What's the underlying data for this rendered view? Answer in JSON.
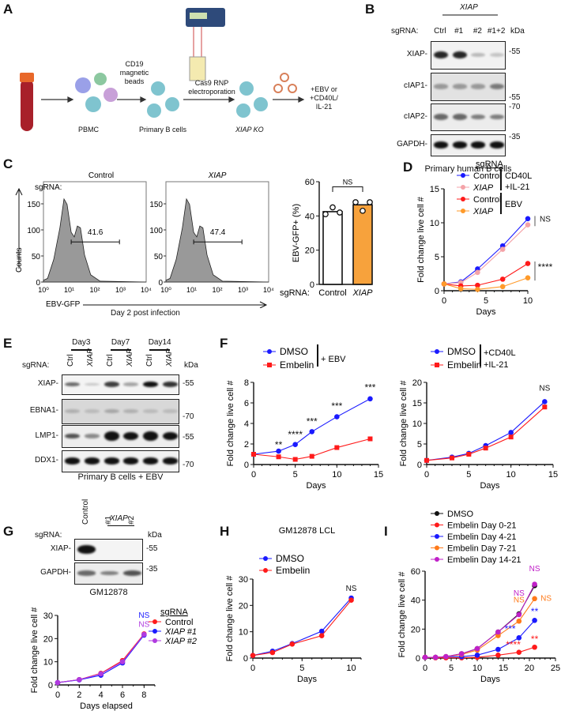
{
  "panels": {
    "A": {
      "label": "A",
      "steps": [
        "PBMC",
        "Primary B cells",
        "XIAP KO"
      ],
      "arrow1_label": [
        "CD19",
        "magnetic",
        "beads"
      ],
      "arrow2_label": [
        "Cas9 RNP",
        "electroporation"
      ],
      "final_label": [
        "+EBV or",
        "+CD40L/",
        "IL-21"
      ],
      "colors": {
        "blood": "#a8202a",
        "cap": "#e8682a",
        "bcell": "#7fc4cf",
        "virus": "#d8805a"
      }
    },
    "B": {
      "label": "B",
      "group_label": "XIAP",
      "sgrna_label": "sgRNA:",
      "lanes": [
        "Ctrl",
        "#1",
        "#2",
        "#1+2"
      ],
      "kda_label": "kDa",
      "rows": [
        "XIAP-",
        "cIAP1-",
        "cIAP2-",
        "GAPDH-"
      ],
      "markers": [
        "-55",
        "-55",
        "-70",
        "-35"
      ],
      "caption": "Primary human B cells"
    },
    "C": {
      "label": "C",
      "sgrna_label": "sgRNA:",
      "hist_titles": [
        "Control",
        "XIAP"
      ],
      "gate_values": [
        "41.6",
        "47.4"
      ],
      "y_ticks": [
        "0",
        "50",
        "100",
        "150"
      ],
      "x_ticks": [
        "10⁰",
        "10¹",
        "10²",
        "10³",
        "10⁴"
      ],
      "ylabel": "Counts",
      "xlabel": "EBV-GFP",
      "caption": "Day 2 post infection"
    },
    "E": {
      "label": "E",
      "days": [
        "Day3",
        "Day7",
        "Day14"
      ],
      "sgrna_label": "sgRNA:",
      "lanes": [
        "Ctrl",
        "XIAP",
        "Ctrl",
        "XIAP",
        "Ctrl",
        "XIAP"
      ],
      "kda_label": "kDa",
      "rows": [
        "XIAP-",
        "EBNA1-",
        "LMP1-",
        "DDX1-"
      ],
      "markers": [
        "-55",
        "-70",
        "-55",
        "-70"
      ],
      "caption": "Primary B cells + EBV"
    },
    "G": {
      "label": "G",
      "group_label": "XIAP",
      "sgrna_label": "sgRNA:",
      "lanes": [
        "Control",
        "#1",
        "#2"
      ],
      "kda_label": "kDa",
      "rows": [
        "XIAP-",
        "GAPDH-"
      ],
      "markers": [
        "-55",
        "-35"
      ],
      "caption": "GM12878"
    },
    "D": {
      "label": "D"
    },
    "F": {
      "label": "F"
    },
    "H": {
      "label": "H"
    },
    "I": {
      "label": "I"
    }
  },
  "chart_data": [
    {
      "id": "C-bar",
      "type": "bar",
      "categories": [
        "Control",
        "XIAP"
      ],
      "values": [
        42.5,
        46.5
      ],
      "points": [
        [
          41,
          45,
          42
        ],
        [
          48,
          43,
          48
        ]
      ],
      "colors": [
        "#ffffff",
        "#f7a23c"
      ],
      "ylabel": "EBV-GFP+ (%)",
      "xlabel": "sgRNA:",
      "ylim": [
        0,
        60
      ],
      "yticks": [
        0,
        20,
        40,
        60
      ],
      "annotation": "NS"
    },
    {
      "id": "D",
      "type": "line",
      "legend_title": "sgRNA",
      "xlabel": "Days",
      "ylabel": "Fold change live cell #",
      "xlim": [
        0,
        10
      ],
      "ylim": [
        0,
        15
      ],
      "xticks": [
        0,
        5,
        10
      ],
      "yticks": [
        0,
        5,
        10,
        15
      ],
      "x": [
        0,
        2,
        4,
        7,
        10
      ],
      "series": [
        {
          "name": "Control",
          "color": "#1a1aff",
          "values": [
            1,
            1.3,
            3.2,
            6.6,
            10.6
          ]
        },
        {
          "name": "XIAP",
          "color": "#f4a3a8",
          "values": [
            1,
            1.2,
            2.7,
            6.1,
            9.7
          ]
        },
        {
          "name": "Control",
          "color": "#ff1a1a",
          "values": [
            1,
            0.7,
            0.8,
            1.7,
            4.0
          ]
        },
        {
          "name": "XIAP",
          "color": "#ff9a2a",
          "values": [
            1,
            0.3,
            0.2,
            0.6,
            1.9
          ]
        }
      ],
      "group_labels": [
        [
          "CD40L",
          "+IL-21"
        ],
        [
          "EBV"
        ]
      ],
      "annotations": [
        {
          "text": "NS",
          "x": 10,
          "y": 10.2
        },
        {
          "text": "****",
          "x": 10,
          "y": 3.0
        }
      ]
    },
    {
      "id": "F1",
      "type": "line",
      "legend_group": "+ EBV",
      "xlabel": "Days",
      "ylabel": "Fold change live cell #",
      "xlim": [
        0,
        15
      ],
      "ylim": [
        0,
        8
      ],
      "xticks": [
        0,
        5,
        10,
        15
      ],
      "yticks": [
        0,
        2,
        4,
        6,
        8
      ],
      "x": [
        0,
        3,
        5,
        7,
        10,
        14
      ],
      "series": [
        {
          "name": "DMSO",
          "color": "#1a1aff",
          "marker": "circle",
          "values": [
            1,
            1.3,
            1.95,
            3.2,
            4.65,
            6.4
          ]
        },
        {
          "name": "Embelin",
          "color": "#ff1a1a",
          "marker": "square",
          "values": [
            1,
            0.75,
            0.5,
            0.8,
            1.65,
            2.5
          ]
        }
      ],
      "annotations": [
        {
          "text": "**",
          "x": 3,
          "y": 1.6
        },
        {
          "text": "****",
          "x": 5,
          "y": 2.6
        },
        {
          "text": "***",
          "x": 7,
          "y": 3.9
        },
        {
          "text": "***",
          "x": 10,
          "y": 5.4
        },
        {
          "text": "***",
          "x": 14,
          "y": 7.2
        }
      ]
    },
    {
      "id": "F2",
      "type": "line",
      "legend_group": [
        "+CD40L",
        "+IL-21"
      ],
      "xlabel": "Days",
      "ylabel": "Fold change live cell #",
      "xlim": [
        0,
        15
      ],
      "ylim": [
        0,
        20
      ],
      "xticks": [
        0,
        5,
        10,
        15
      ],
      "yticks": [
        0,
        5,
        10,
        15,
        20
      ],
      "x": [
        0,
        3,
        5,
        7,
        10,
        14
      ],
      "series": [
        {
          "name": "DMSO",
          "color": "#1a1aff",
          "marker": "circle",
          "values": [
            1,
            1.8,
            2.7,
            4.6,
            7.8,
            15.3
          ]
        },
        {
          "name": "Embelin",
          "color": "#ff1a1a",
          "marker": "square",
          "values": [
            1,
            1.6,
            2.5,
            4.0,
            6.7,
            14.0
          ]
        }
      ],
      "annotations": [
        {
          "text": "NS",
          "x": 14,
          "y": 18
        }
      ]
    },
    {
      "id": "G",
      "type": "line",
      "legend_title": "sgRNA",
      "xlabel": "Days elapsed",
      "ylabel": "Fold change live cell #",
      "xlim": [
        0,
        9
      ],
      "ylim": [
        0,
        30
      ],
      "xticks": [
        0,
        2,
        4,
        6,
        8
      ],
      "yticks": [
        0,
        10,
        20,
        30
      ],
      "x": [
        0,
        2,
        4,
        6,
        8
      ],
      "series": [
        {
          "name": "Control",
          "color": "#ff1a1a",
          "values": [
            1,
            2.3,
            5,
            10.5,
            22
          ]
        },
        {
          "name": "XIAP #1",
          "color": "#1a1aff",
          "values": [
            1,
            2.2,
            4.2,
            9.5,
            21.5
          ]
        },
        {
          "name": "XIAP #2",
          "color": "#b03ae0",
          "values": [
            1,
            2.3,
            4.8,
            10,
            21.8
          ]
        }
      ],
      "annotations": [
        {
          "text": "NS",
          "x": 8,
          "y": 29,
          "color": "#1a1aff"
        },
        {
          "text": "NS",
          "x": 8,
          "y": 25,
          "color": "#b03ae0"
        }
      ]
    },
    {
      "id": "H",
      "type": "line",
      "title": "GM12878 LCL",
      "xlabel": "Days",
      "ylabel": "Fold change live cell #",
      "xlim": [
        0,
        11
      ],
      "ylim": [
        0,
        30
      ],
      "xticks": [
        0,
        5,
        10
      ],
      "yticks": [
        0,
        10,
        20,
        30
      ],
      "x": [
        0,
        2,
        4,
        7,
        10
      ],
      "series": [
        {
          "name": "DMSO",
          "color": "#1a1aff",
          "values": [
            1,
            2.6,
            5.5,
            10.2,
            22.8
          ]
        },
        {
          "name": "Embelin",
          "color": "#ff1a1a",
          "values": [
            1,
            2.1,
            5.3,
            8.5,
            22
          ]
        }
      ],
      "annotations": [
        {
          "text": "NS",
          "x": 10,
          "y": 25.5
        }
      ]
    },
    {
      "id": "I",
      "type": "line",
      "xlabel": "Days",
      "ylabel": "Fold change live cell #",
      "xlim": [
        0,
        25
      ],
      "ylim": [
        0,
        60
      ],
      "xticks": [
        0,
        5,
        10,
        15,
        20,
        25
      ],
      "yticks": [
        0,
        20,
        40,
        60
      ],
      "x": [
        0,
        2,
        4,
        7,
        10,
        14,
        18,
        21
      ],
      "series": [
        {
          "name": "DMSO",
          "color": "#111111",
          "values": [
            0.5,
            0.5,
            1,
            3,
            6.5,
            18,
            30.5,
            50
          ]
        },
        {
          "name": "Embelin Day 0-21",
          "color": "#ff1a1a",
          "values": [
            0.5,
            0.2,
            0.2,
            0.2,
            0.5,
            2,
            4,
            7.5
          ]
        },
        {
          "name": "Embelin Day 4-21",
          "color": "#1a1aff",
          "values": [
            0.5,
            0.5,
            1,
            1,
            2,
            6,
            14,
            26
          ]
        },
        {
          "name": "Embelin Day 7-21",
          "color": "#ff7a1a",
          "values": [
            0.5,
            0.5,
            1,
            2.5,
            5.5,
            15.5,
            25.5,
            41
          ]
        },
        {
          "name": "Embelin Day 14-21",
          "color": "#c020c8",
          "values": [
            0.5,
            0.5,
            1,
            3,
            6.5,
            18,
            30,
            51
          ]
        }
      ],
      "annotations": [
        {
          "text": "NS",
          "x": 21,
          "y": 60,
          "color": "#c020c8"
        },
        {
          "text": "NS",
          "x": 18,
          "y": 43,
          "color": "#c020c8"
        },
        {
          "text": "NS",
          "x": 18,
          "y": 38.5,
          "color": "#ff7a1a"
        },
        {
          "text": "NS",
          "x": 23.2,
          "y": 39.5,
          "color": "#ff7a1a"
        },
        {
          "text": "**",
          "x": 21,
          "y": 30,
          "color": "#1a1aff"
        },
        {
          "text": "***",
          "x": 16.3,
          "y": 18,
          "color": "#1a1aff"
        },
        {
          "text": "**",
          "x": 21,
          "y": 11,
          "color": "#ff1a1a"
        },
        {
          "text": "****",
          "x": 16.9,
          "y": 7,
          "color": "#ff1a1a"
        }
      ]
    }
  ]
}
